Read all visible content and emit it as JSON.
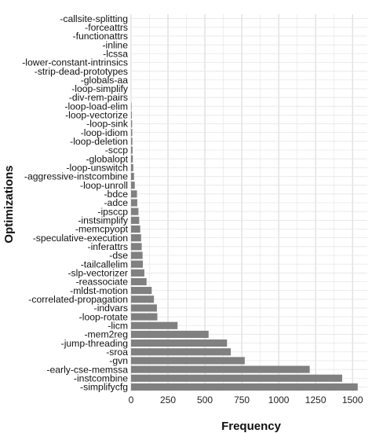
{
  "chart_data": {
    "type": "bar",
    "orientation": "horizontal",
    "xlabel": "Frequency",
    "ylabel": "Optimizations",
    "xlim": [
      0,
      1600
    ],
    "x_ticks": [
      0,
      250,
      500,
      750,
      1000,
      1250,
      1500
    ],
    "grid": true,
    "categories": [
      "-callsite-splitting",
      "-forceattrs",
      "-functionattrs",
      "-inline",
      "-lcssa",
      "-lower-constant-intrinsics",
      "-strip-dead-prototypes",
      "-globals-aa",
      "-loop-simplify",
      "-div-rem-pairs",
      "-loop-load-elim",
      "-loop-vectorize",
      "-loop-sink",
      "-loop-idiom",
      "-loop-deletion",
      "-sccp",
      "-globalopt",
      "-loop-unswitch",
      "-aggressive-instcombine",
      "-loop-unroll",
      "-bdce",
      "-adce",
      "-ipsccp",
      "-instsimplify",
      "-memcpyopt",
      "-speculative-execution",
      "-inferattrs",
      "-dse",
      "-tailcallelim",
      "-slp-vectorizer",
      "-reassociate",
      "-mldst-motion",
      "-correlated-propagation",
      "-indvars",
      "-loop-rotate",
      "-licm",
      "-mem2reg",
      "-jump-threading",
      "-sroa",
      "-gvn",
      "-early-cse-memssa",
      "-instcombine",
      "-simplifycfg"
    ],
    "values": [
      0,
      0,
      0,
      0,
      0,
      0,
      0,
      0,
      0,
      0,
      3,
      5,
      7,
      8,
      9,
      10,
      12,
      15,
      20,
      25,
      40,
      42,
      50,
      55,
      62,
      68,
      72,
      78,
      80,
      90,
      105,
      140,
      155,
      175,
      178,
      315,
      525,
      650,
      675,
      770,
      1210,
      1430,
      1535
    ],
    "bar_color": "#808080"
  }
}
